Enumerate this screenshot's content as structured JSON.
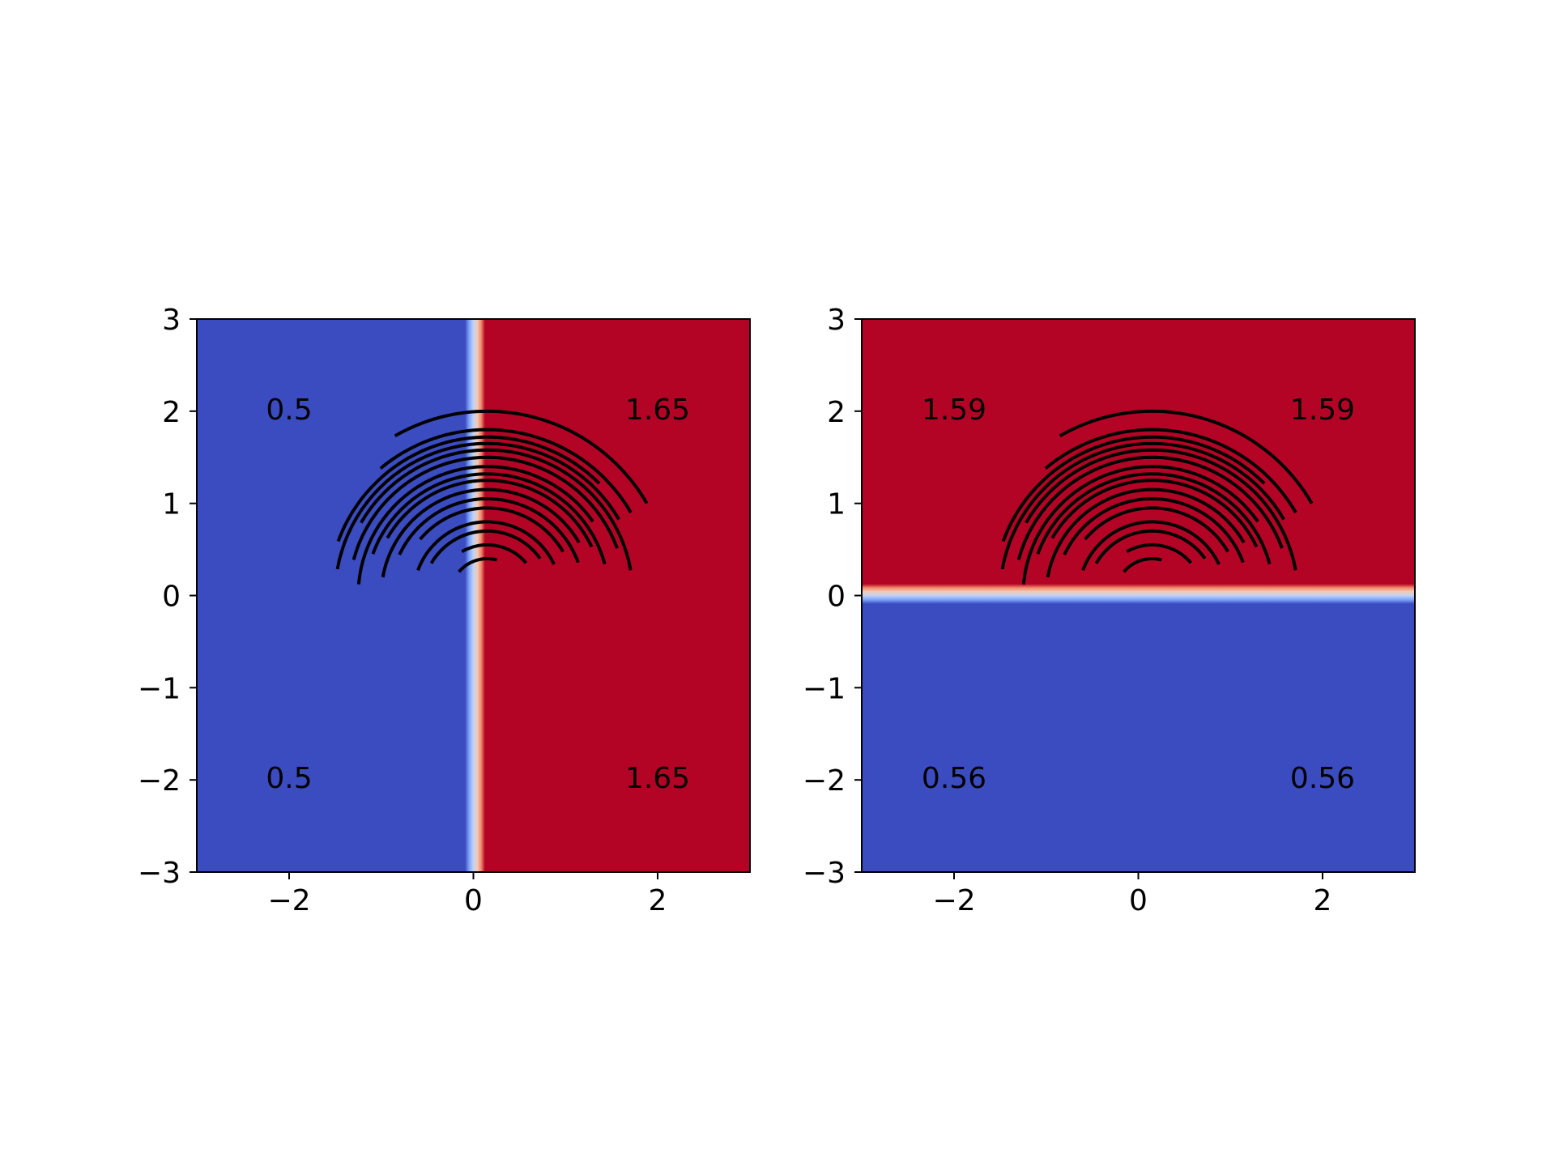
{
  "chart_data": [
    {
      "type": "heatmap",
      "title": "",
      "xlabel": "",
      "ylabel": "",
      "xlim": [
        -3,
        3
      ],
      "ylim": [
        -3,
        3
      ],
      "xticks": [
        -2,
        0,
        2
      ],
      "yticks": [
        -3,
        -2,
        -1,
        0,
        1,
        2,
        3
      ],
      "xtick_labels": [
        "−2",
        "0",
        "2"
      ],
      "ytick_labels": [
        "−3",
        "−2",
        "−1",
        "0",
        "1",
        "2",
        "3"
      ],
      "grid": false,
      "colormap": "coolwarm",
      "boundary": {
        "axis": "x",
        "value": 0.15,
        "low_side_color": "#3b4cc0",
        "high_side_color": "#b40426"
      },
      "region_labels": [
        {
          "x": -2,
          "y": 2,
          "text": "0.5"
        },
        {
          "x": 2,
          "y": 2,
          "text": "1.65"
        },
        {
          "x": -2,
          "y": -2,
          "text": "0.5"
        },
        {
          "x": 2,
          "y": -2,
          "text": "1.65"
        }
      ],
      "arcs": {
        "center": [
          0.15,
          0.0
        ],
        "color": "#000000"
      }
    },
    {
      "type": "heatmap",
      "title": "",
      "xlabel": "",
      "ylabel": "",
      "xlim": [
        -3,
        3
      ],
      "ylim": [
        -3,
        3
      ],
      "xticks": [
        -2,
        0,
        2
      ],
      "yticks": [
        -3,
        -2,
        -1,
        0,
        1,
        2,
        3
      ],
      "xtick_labels": [
        "−2",
        "0",
        "2"
      ],
      "ytick_labels": [
        "−3",
        "−2",
        "−1",
        "0",
        "1",
        "2",
        "3"
      ],
      "grid": false,
      "colormap": "coolwarm",
      "boundary": {
        "axis": "y",
        "value": 0.17,
        "low_side_color": "#3b4cc0",
        "high_side_color": "#b40426"
      },
      "region_labels": [
        {
          "x": -2,
          "y": 2,
          "text": "1.59"
        },
        {
          "x": 2,
          "y": 2,
          "text": "1.59"
        },
        {
          "x": -2,
          "y": -2,
          "text": "0.56"
        },
        {
          "x": 2,
          "y": -2,
          "text": "0.56"
        }
      ],
      "arcs": {
        "center": [
          0.15,
          0.0
        ],
        "color": "#000000"
      }
    }
  ]
}
